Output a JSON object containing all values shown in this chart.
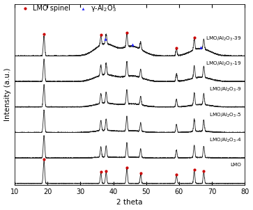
{
  "xlim": [
    10,
    80
  ],
  "xlabel": "2 theta",
  "ylabel": "Intensity (a.u.)",
  "background_color": "#ffffff",
  "series_labels_display": [
    "LMO",
    "LMO/Al$_2$O$_3$-4",
    "LMO/Al$_2$O$_3$-5",
    "LMO/Al$_2$O$_3$-9",
    "LMO/Al$_2$O$_3$-19",
    "LMO/Al$_2$O$_3$-39"
  ],
  "lmo_spinel_marker_color": "#cc0000",
  "gamma_al2o3_marker_color": "#1a1aff",
  "line_color": "#222222",
  "line_width": 0.6,
  "legend_lmo_label": "LMO spinel",
  "legend_al2o3_label": "γ-Al$_2$O$_3$",
  "xticks": [
    10,
    20,
    30,
    40,
    50,
    60,
    70,
    80
  ],
  "axis_fontsize": 7.5,
  "tick_fontsize": 7,
  "legend_fontsize": 7
}
